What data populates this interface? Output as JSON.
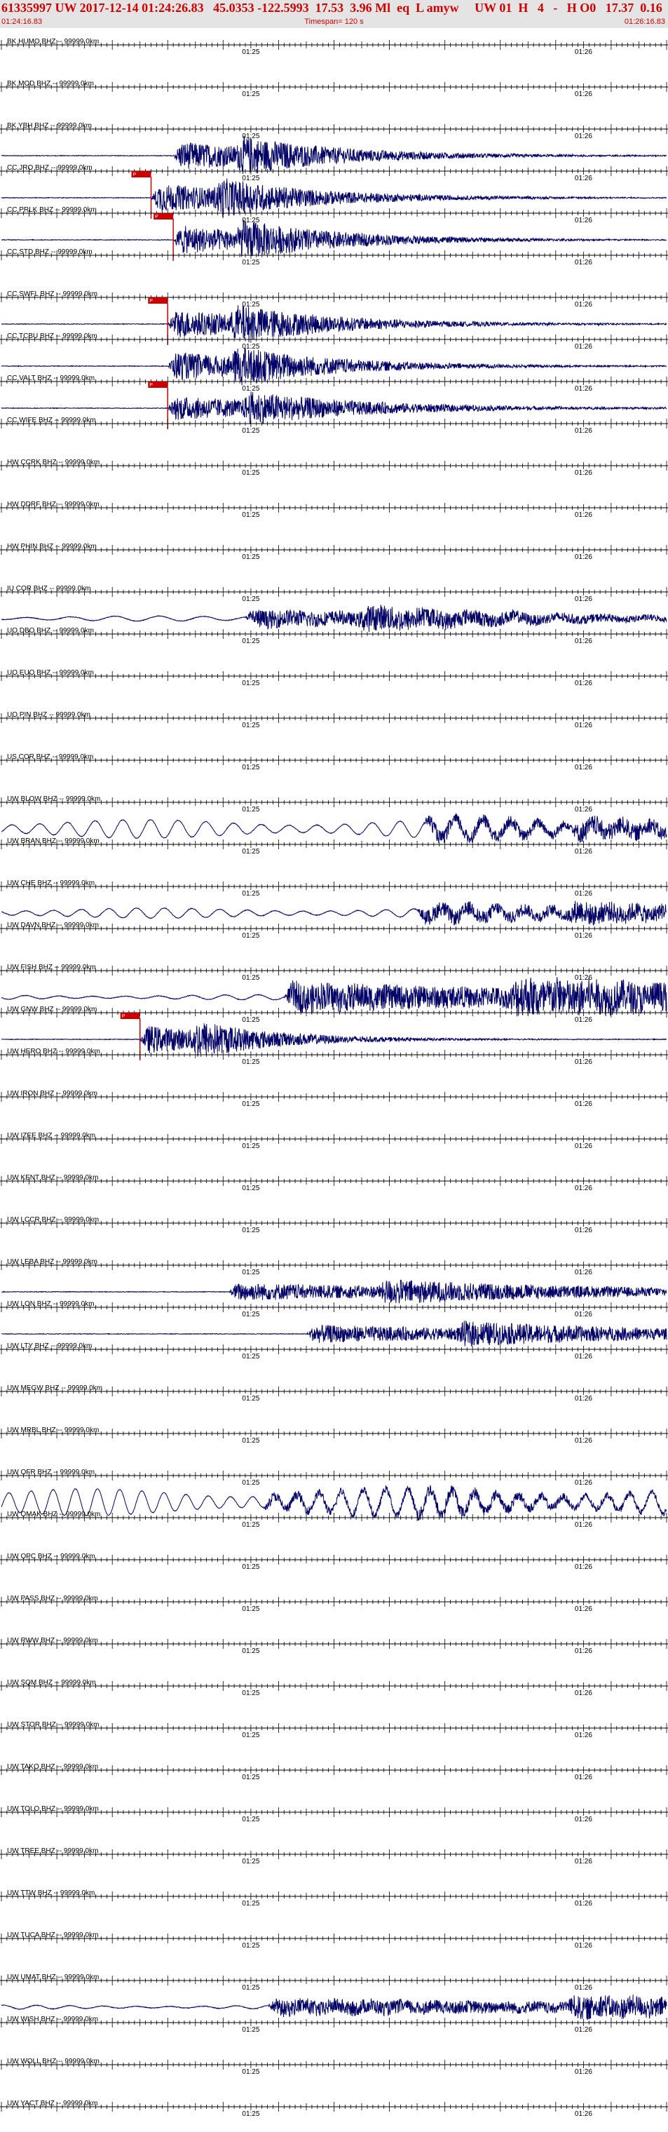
{
  "header": {
    "event_line": "61335997 UW 2017-12-14 01:24:26.83   45.0353 -122.5993  17.53  3.96 Ml  eq  L amyw     UW 01  H   4   -   H O0   17.37  0.16",
    "start_time": "01:24:16.83",
    "timespan": "Timespan= 120 s",
    "end_time": "01:26:16.83"
  },
  "chart_data": {
    "type": "line",
    "title": "61335997 UW 2017-12-14 01:24:26.83",
    "xlabel": "",
    "ylabel": "",
    "time_start": "01:24:16.83",
    "time_end": "01:26:16.83",
    "timespan_s": 120,
    "minute_ticks": [
      "01:25",
      "01:26"
    ],
    "minute_tick_seconds": [
      43.17,
      103.17
    ],
    "grid": false,
    "trace_color": "#000066",
    "pick_color": "#cc0000",
    "channels": [
      {
        "label": "BK HUMO BHZ -- 99999.0km",
        "active": false
      },
      {
        "label": "BK MOD BHZ -- 99999.0km",
        "active": false
      },
      {
        "label": "BK YBH BHZ -- 99999.0km",
        "active": true,
        "onset_s": 31,
        "amplitude": 0.9,
        "period_s": 0.35,
        "decay_s": 25
      },
      {
        "label": "CC JRO BHZ -- 99999.0km",
        "active": true,
        "onset_s": 27,
        "amplitude": 0.9,
        "period_s": 0.35,
        "decay_s": 25,
        "pick_s": 27,
        "pick_label": "P"
      },
      {
        "label": "CC PRLK BHZ -- 99999.0km",
        "active": true,
        "onset_s": 31,
        "amplitude": 0.9,
        "period_s": 0.35,
        "decay_s": 25,
        "pick_s": 31,
        "pick_label": "P"
      },
      {
        "label": "CC STD BHZ -- 99999.0km",
        "active": false
      },
      {
        "label": "CC SWFL BHZ -- 99999.0km",
        "active": true,
        "onset_s": 30,
        "amplitude": 0.9,
        "period_s": 0.35,
        "decay_s": 25,
        "pick_s": 30,
        "pick_label": "P"
      },
      {
        "label": "CC TCBU BHZ -- 99999.0km",
        "active": true,
        "onset_s": 30,
        "amplitude": 0.9,
        "period_s": 0.35,
        "decay_s": 25
      },
      {
        "label": "CC VALT BHZ -- 99999.0km",
        "active": true,
        "onset_s": 30,
        "amplitude": 0.75,
        "period_s": 0.35,
        "decay_s": 30,
        "pick_s": 30,
        "pick_label": "P"
      },
      {
        "label": "CC WIFE BHZ -- 99999.0km",
        "active": false
      },
      {
        "label": "HW CCRK BHZ -- 99999.0km",
        "active": false
      },
      {
        "label": "HW DDRF BHZ -- 99999.0km",
        "active": false
      },
      {
        "label": "HW PHIN BHZ -- 99999.0km",
        "active": false
      },
      {
        "label": "IU COR BHZ -- 99999.0km",
        "active": true,
        "onset_s": 44,
        "amplitude": 0.6,
        "period_s": 0.45,
        "decay_s": 45,
        "noise": 0.15,
        "noise_period_s": 8
      },
      {
        "label": "UO DBO BHZ -- 99999.0km",
        "active": false
      },
      {
        "label": "UO EUO BHZ -- 99999.0km",
        "active": false
      },
      {
        "label": "UO PIN BHZ -- 99999.0km",
        "active": false
      },
      {
        "label": "US COR BHZ -- 99999.0km",
        "active": false
      },
      {
        "label": "UW BLOW BHZ -- 99999.0km",
        "active": true,
        "onset_s": 76,
        "amplitude": 0.45,
        "period_s": 0.5,
        "decay_s": 60,
        "noise": 0.55,
        "noise_period_s": 5
      },
      {
        "label": "UW BRAN BHZ -- 99999.0km",
        "active": false
      },
      {
        "label": "UW CHE BHZ -- 99999.0km",
        "active": true,
        "onset_s": 75,
        "amplitude": 0.5,
        "period_s": 0.5,
        "decay_s": 60,
        "noise": 0.3,
        "noise_period_s": 5
      },
      {
        "label": "UW DAVN BHZ -- 99999.0km",
        "active": false
      },
      {
        "label": "UW FISH BHZ -- 99999.0km",
        "active": true,
        "onset_s": 51,
        "amplitude": 0.9,
        "period_s": 0.4,
        "decay_s": 90,
        "noise": 0.15,
        "noise_period_s": 6
      },
      {
        "label": "UW GNW BHZ -- 99999.0km",
        "active": true,
        "onset_s": 25,
        "amplitude": 0.9,
        "period_s": 0.35,
        "decay_s": 20,
        "pick_s": 25,
        "pick_label": "P"
      },
      {
        "label": "UW HERO BHZ -- 99999.0km",
        "active": false
      },
      {
        "label": "UW IRON BHZ -- 99999.0km",
        "active": false
      },
      {
        "label": "UW IZEE BHZ -- 99999.0km",
        "active": false
      },
      {
        "label": "UW KENT BHZ -- 99999.0km",
        "active": false
      },
      {
        "label": "UW LCCR BHZ -- 99999.0km",
        "active": false
      },
      {
        "label": "UW LEBA BHZ -- 99999.0km",
        "active": true,
        "onset_s": 41,
        "amplitude": 0.55,
        "period_s": 0.35,
        "decay_s": 60
      },
      {
        "label": "UW LON BHZ -- 99999.0km",
        "active": true,
        "onset_s": 55,
        "amplitude": 0.55,
        "period_s": 0.35,
        "decay_s": 60
      },
      {
        "label": "UW LTY BHZ -- 99999.0km",
        "active": false
      },
      {
        "label": "UW MEGW BHZ -- 99999.0km",
        "active": false
      },
      {
        "label": "UW MRBL BHZ -- 99999.0km",
        "active": false
      },
      {
        "label": "UW OFR BHZ -- 99999.0km",
        "active": true,
        "onset_s": 47,
        "amplitude": 0.3,
        "period_s": 0.35,
        "decay_s": 60,
        "noise": 0.8,
        "noise_period_s": 4
      },
      {
        "label": "UW OMAK BHZ -- 99999.0km",
        "active": false
      },
      {
        "label": "UW OPC BHZ -- 99999.0km",
        "active": false
      },
      {
        "label": "UW PASS BHZ -- 99999.0km",
        "active": false
      },
      {
        "label": "UW RWW BHZ -- 99999.0km",
        "active": false
      },
      {
        "label": "UW SQM BHZ -- 99999.0km",
        "active": false
      },
      {
        "label": "UW STOR BHZ -- 99999.0km",
        "active": false
      },
      {
        "label": "UW TAKO BHZ -- 99999.0km",
        "active": false
      },
      {
        "label": "UW TOLO BHZ -- 99999.0km",
        "active": false
      },
      {
        "label": "UW TREE BHZ -- 99999.0km",
        "active": false
      },
      {
        "label": "UW TTW BHZ -- 99999.0km",
        "active": false
      },
      {
        "label": "UW TUCA BHZ -- 99999.0km",
        "active": false
      },
      {
        "label": "UW UMAT BHZ -- 99999.0km",
        "active": true,
        "onset_s": 48,
        "amplitude": 0.5,
        "period_s": 0.4,
        "decay_s": 120,
        "noise": 0.12,
        "noise_period_s": 6
      },
      {
        "label": "UW WISH BHZ -- 99999.0km",
        "active": false
      },
      {
        "label": "UW WOLL BHZ -- 99999.0km",
        "active": false
      },
      {
        "label": "UW YACT BHZ -- 99999.0km",
        "active": false
      }
    ]
  }
}
